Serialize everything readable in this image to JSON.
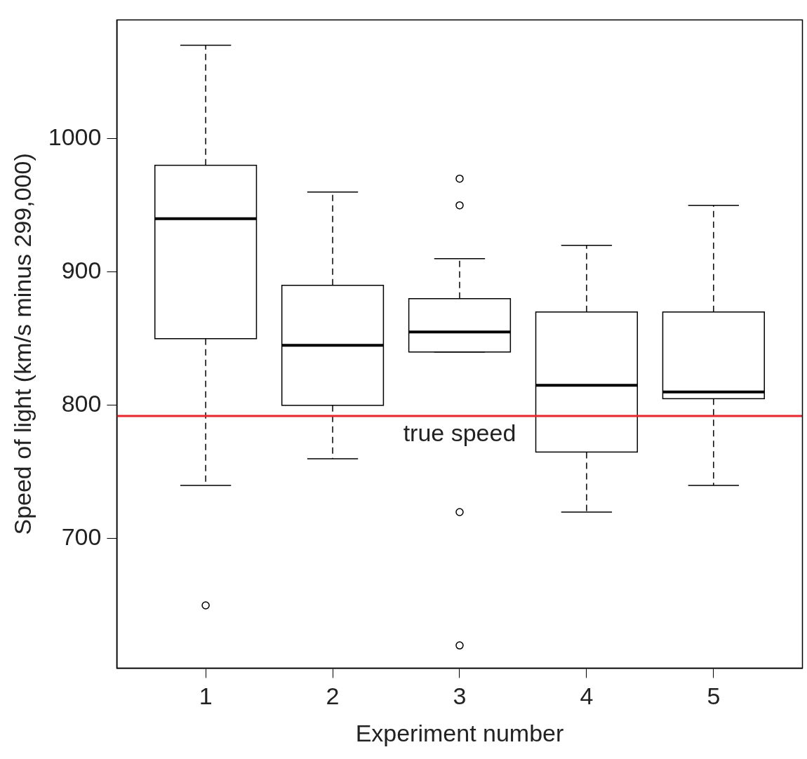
{
  "chart_data": {
    "type": "box",
    "x": [
      1,
      2,
      3,
      4,
      5
    ],
    "xlabel": "Experiment number",
    "ylabel": "Speed of light (km/s minus 299,000)",
    "whisker_low": [
      740,
      760,
      840,
      720,
      740
    ],
    "q1": [
      850,
      800,
      840,
      765,
      805
    ],
    "median": [
      940,
      845,
      855,
      815,
      810
    ],
    "q3": [
      980,
      890,
      880,
      870,
      870
    ],
    "whisker_high": [
      1070,
      960,
      910,
      920,
      950
    ],
    "outliers": [
      [
        650
      ],
      [],
      [
        620,
        720,
        950,
        970
      ],
      [],
      []
    ],
    "xlim": [
      0.3,
      5.7
    ],
    "xticks": [
      1,
      2,
      3,
      4,
      5
    ],
    "ylim": [
      603,
      1089
    ],
    "yticks": [
      700,
      800,
      900,
      1000
    ],
    "reference_line": {
      "value": 792,
      "label": "true speed",
      "color": "#e8262b"
    },
    "color": "#000000",
    "grid": false
  }
}
